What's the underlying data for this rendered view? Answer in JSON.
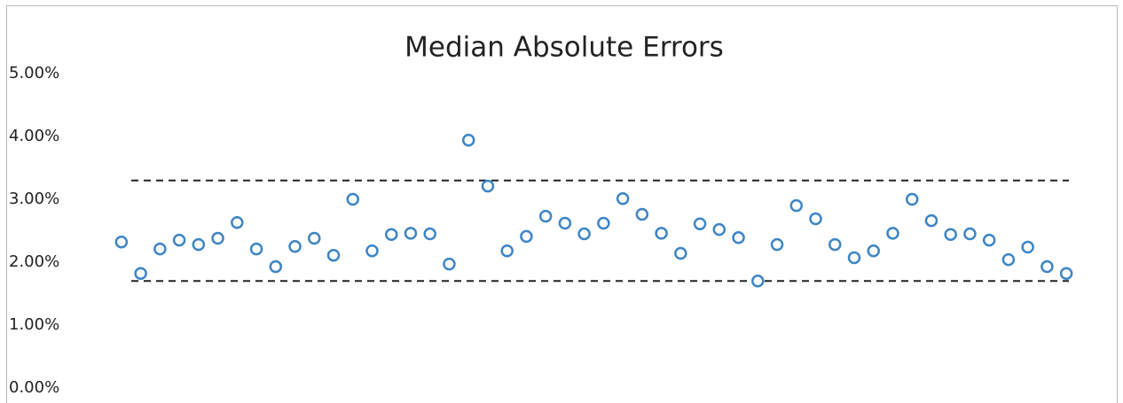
{
  "chart_data": {
    "type": "scatter",
    "title": "Median Absolute Errors",
    "categories": [
      null,
      null,
      null,
      null,
      null,
      null,
      null,
      null,
      null,
      null,
      null,
      null,
      null,
      null,
      null,
      null,
      null,
      null,
      null,
      null,
      null,
      null,
      null,
      null,
      null,
      null,
      null,
      null,
      null,
      null,
      null,
      null,
      null,
      null,
      null,
      null,
      null,
      null,
      null,
      null,
      null,
      null,
      null,
      null,
      null,
      null,
      null,
      null,
      null,
      null
    ],
    "values": [
      2.32,
      1.82,
      2.21,
      2.35,
      2.28,
      2.38,
      2.63,
      2.21,
      1.93,
      2.25,
      2.38,
      2.11,
      3.0,
      2.18,
      2.44,
      2.46,
      2.45,
      1.97,
      3.94,
      3.21,
      2.18,
      2.41,
      2.73,
      2.62,
      2.45,
      2.62,
      3.01,
      2.76,
      2.46,
      2.14,
      2.61,
      2.52,
      2.39,
      1.7,
      2.28,
      2.9,
      2.69,
      2.28,
      2.07,
      2.18,
      2.46,
      3.0,
      2.66,
      2.44,
      2.45,
      2.35,
      2.04,
      2.24,
      1.93,
      1.82
    ],
    "color": "#3d85c6",
    "reference_lines": [
      3.3,
      1.7
    ],
    "ylim": [
      0,
      5
    ],
    "yticks": [
      {
        "value": 0,
        "label": "0.00%"
      },
      {
        "value": 1,
        "label": "1.00%"
      },
      {
        "value": 2,
        "label": "2.00%"
      },
      {
        "value": 3,
        "label": "3.00%"
      },
      {
        "value": 4,
        "label": "4.00%"
      },
      {
        "value": 5,
        "label": "5.00%"
      }
    ]
  }
}
